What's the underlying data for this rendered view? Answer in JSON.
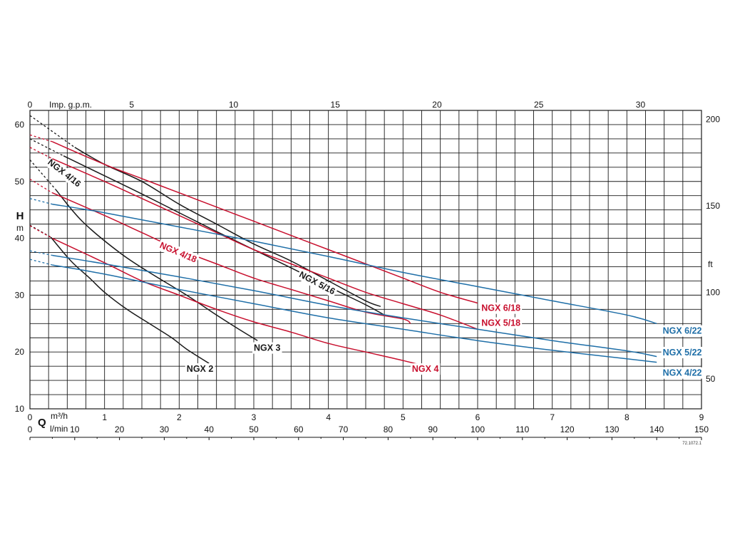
{
  "chart_data": {
    "type": "line",
    "title": "",
    "colors": {
      "black": "#1a1a1a",
      "red": "#c8102e",
      "blue": "#1f6fa8",
      "grid": "#1a1a1a"
    },
    "axes": {
      "H_m": {
        "label": "H",
        "unit": "m",
        "min": 10,
        "max": 62.5,
        "ticks": [
          10,
          20,
          30,
          40,
          50,
          60
        ]
      },
      "H_ft": {
        "unit": "ft",
        "ticks": [
          50,
          100,
          150,
          200
        ]
      },
      "Q_m3h": {
        "label": "Q",
        "unit": "m³/h",
        "min": 0,
        "max": 9,
        "ticks": [
          0,
          1,
          2,
          3,
          4,
          5,
          6,
          7,
          8,
          9
        ]
      },
      "Q_lmin": {
        "unit": "l/min",
        "ticks": [
          0,
          10,
          20,
          30,
          40,
          50,
          60,
          70,
          80,
          90,
          100,
          110,
          120,
          130,
          140,
          150
        ]
      },
      "Q_impgpm": {
        "unit": "Imp. g.p.m.",
        "ticks": [
          0,
          5,
          10,
          15,
          20,
          25,
          30
        ]
      }
    },
    "drawing_code": "72.1072.1",
    "series": [
      {
        "name": "NGX 2",
        "color": "black",
        "shutoff": 42.3,
        "dashed_to": 0.28,
        "points": [
          [
            0.28,
            40.2
          ],
          [
            0.55,
            36
          ],
          [
            0.8,
            33
          ],
          [
            1.0,
            30.5
          ],
          [
            1.3,
            27.5
          ],
          [
            1.6,
            25
          ],
          [
            1.9,
            22.5
          ],
          [
            2.1,
            20.5
          ],
          [
            2.4,
            18
          ]
        ],
        "label": "NGX 2",
        "label_at": [
          2.1,
          16.5
        ]
      },
      {
        "name": "NGX 3",
        "color": "black",
        "shutoff": 53.8,
        "dashed_to": 0.35,
        "points": [
          [
            0.35,
            48.5
          ],
          [
            0.7,
            43
          ],
          [
            1.2,
            37.5
          ],
          [
            1.6,
            34
          ],
          [
            2.1,
            30
          ],
          [
            2.5,
            26.5
          ],
          [
            2.8,
            24
          ],
          [
            3.05,
            22
          ]
        ],
        "label": "NGX 3",
        "label_at": [
          3.0,
          20.2
        ]
      },
      {
        "name": "NGX 4/16",
        "color": "black",
        "shutoff": 61.6,
        "dashed_to": 0.6,
        "points": [
          [
            0.6,
            56
          ],
          [
            1.0,
            53
          ],
          [
            1.5,
            50
          ],
          [
            2.0,
            46
          ],
          [
            2.5,
            42.5
          ],
          [
            3.0,
            39
          ],
          [
            3.5,
            36
          ],
          [
            4.0,
            32.5
          ],
          [
            4.5,
            29
          ],
          [
            4.7,
            28
          ]
        ],
        "label": "NGX 4/16",
        "label_at": [
          0.23,
          53.2
        ],
        "label_rot": 38
      },
      {
        "name": "NGX 5/16",
        "color": "black",
        "shutoff": 57.5,
        "dashed_to": 0.45,
        "points": [
          [
            0.45,
            54.5
          ],
          [
            1.0,
            51
          ],
          [
            1.5,
            47.8
          ],
          [
            2.0,
            44.5
          ],
          [
            2.5,
            41.2
          ],
          [
            3.0,
            38
          ],
          [
            3.5,
            34.8
          ],
          [
            4.0,
            31.5
          ],
          [
            4.5,
            28.3
          ],
          [
            4.75,
            26.5
          ]
        ],
        "label": "NGX 5/16",
        "label_at": [
          3.6,
          33.3
        ],
        "label_rot": 28
      },
      {
        "name": "NGX 4",
        "color": "red",
        "shutoff": 42.2,
        "dashed_to": 0.3,
        "points": [
          [
            0.3,
            40
          ],
          [
            1.0,
            35.7
          ],
          [
            1.5,
            32.5
          ],
          [
            2.0,
            30
          ],
          [
            2.5,
            27.5
          ],
          [
            3.0,
            25.3
          ],
          [
            3.5,
            23.5
          ],
          [
            4.0,
            21.5
          ],
          [
            4.5,
            20
          ],
          [
            5.0,
            18.5
          ],
          [
            5.3,
            17.5
          ]
        ],
        "label": "NGX 4",
        "label_at": [
          5.12,
          16.5
        ]
      },
      {
        "name": "NGX 4/18",
        "color": "red",
        "shutoff": 50.4,
        "dashed_to": 0.3,
        "points": [
          [
            0.3,
            48
          ],
          [
            1.0,
            44
          ],
          [
            1.5,
            41
          ],
          [
            2.0,
            38
          ],
          [
            2.5,
            35.5
          ],
          [
            3.0,
            33
          ],
          [
            3.5,
            31
          ],
          [
            4.0,
            29
          ],
          [
            4.5,
            27
          ],
          [
            5.0,
            25.8
          ],
          [
            5.1,
            25
          ]
        ],
        "label": "NGX 4/18",
        "label_at": [
          1.73,
          38.4
        ],
        "label_rot": 23
      },
      {
        "name": "NGX 5/18",
        "color": "red",
        "shutoff": 56,
        "dashed_to": 0.3,
        "points": [
          [
            0.3,
            54
          ],
          [
            1.0,
            50
          ],
          [
            1.5,
            47
          ],
          [
            2.0,
            44
          ],
          [
            2.5,
            41
          ],
          [
            3.0,
            38
          ],
          [
            3.5,
            35.5
          ],
          [
            4.0,
            33
          ],
          [
            4.5,
            30.5
          ],
          [
            5.0,
            28.5
          ],
          [
            5.5,
            26.5
          ],
          [
            6.0,
            24
          ]
        ],
        "label": "NGX 5/18",
        "label_at": [
          6.05,
          24.6
        ]
      },
      {
        "name": "NGX 6/18",
        "color": "red",
        "shutoff": 58.2,
        "dashed_to": 0.3,
        "points": [
          [
            0.3,
            57
          ],
          [
            1.0,
            53
          ],
          [
            1.5,
            50.5
          ],
          [
            2.0,
            48
          ],
          [
            2.5,
            45.5
          ],
          [
            3.0,
            43
          ],
          [
            3.5,
            40.5
          ],
          [
            4.0,
            38
          ],
          [
            4.5,
            35.5
          ],
          [
            5.0,
            33
          ],
          [
            5.5,
            30.5
          ],
          [
            6.0,
            28.6
          ]
        ],
        "label": "NGX 6/18",
        "label_at": [
          6.05,
          27.2
        ]
      },
      {
        "name": "NGX 4/22",
        "color": "blue",
        "shutoff": 36.3,
        "dashed_to": 0.3,
        "points": [
          [
            0.3,
            35.3
          ],
          [
            1.0,
            33.7
          ],
          [
            2.0,
            31
          ],
          [
            3.0,
            28.5
          ],
          [
            4.0,
            26
          ],
          [
            5.0,
            24
          ],
          [
            6.0,
            22
          ],
          [
            7.0,
            20.3
          ],
          [
            8.0,
            18.8
          ],
          [
            8.4,
            18.2
          ]
        ],
        "label": "NGX 4/22",
        "label_at": [
          8.48,
          15.8
        ]
      },
      {
        "name": "NGX 5/22",
        "color": "blue",
        "shutoff": 37.8,
        "dashed_to": 0.3,
        "points": [
          [
            0.3,
            37
          ],
          [
            1.0,
            35.5
          ],
          [
            2.0,
            33.2
          ],
          [
            3.0,
            30.8
          ],
          [
            4.0,
            28.2
          ],
          [
            5.0,
            26
          ],
          [
            6.0,
            24
          ],
          [
            7.0,
            22
          ],
          [
            8.0,
            20.2
          ],
          [
            8.4,
            19.2
          ]
        ],
        "label": "NGX 5/22",
        "label_at": [
          8.48,
          19.4
        ]
      },
      {
        "name": "NGX 6/22",
        "color": "blue",
        "shutoff": 47,
        "dashed_to": 0.3,
        "points": [
          [
            0.3,
            46
          ],
          [
            1.0,
            44.5
          ],
          [
            2.0,
            42
          ],
          [
            3.0,
            39.5
          ],
          [
            4.0,
            36.8
          ],
          [
            5.0,
            34
          ],
          [
            6.0,
            31.5
          ],
          [
            7.0,
            29
          ],
          [
            8.0,
            26.5
          ],
          [
            8.4,
            25
          ]
        ],
        "label": "NGX 6/22",
        "label_at": [
          8.48,
          23.2
        ]
      }
    ]
  }
}
